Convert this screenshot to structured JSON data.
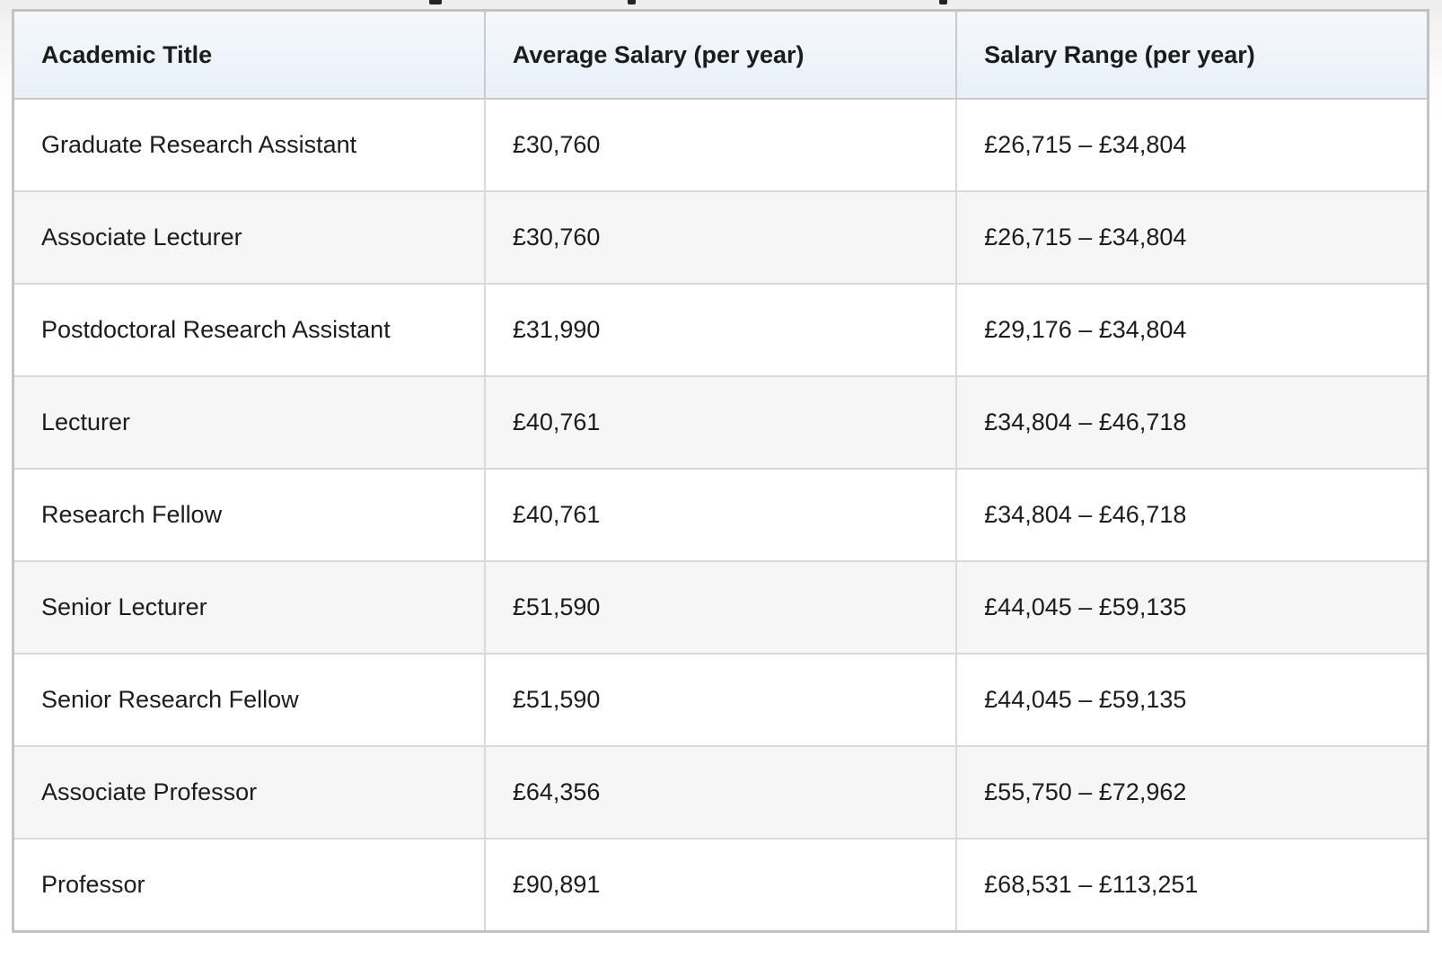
{
  "table": {
    "columns": [
      "Academic Title",
      "Average Salary (per year)",
      "Salary Range (per year)"
    ],
    "rows": [
      {
        "title": "Graduate Research Assistant",
        "average": "£30,760",
        "range": "£26,715 – £34,804"
      },
      {
        "title": "Associate Lecturer",
        "average": "£30,760",
        "range": "£26,715 – £34,804"
      },
      {
        "title": "Postdoctoral Research Assistant",
        "average": "£31,990",
        "range": "£29,176 – £34,804"
      },
      {
        "title": "Lecturer",
        "average": "£40,761",
        "range": "£34,804 – £46,718"
      },
      {
        "title": "Research Fellow",
        "average": "£40,761",
        "range": "£34,804 – £46,718"
      },
      {
        "title": "Senior Lecturer",
        "average": "£51,590",
        "range": "£44,045 – £59,135"
      },
      {
        "title": "Senior Research Fellow",
        "average": "£51,590",
        "range": "£44,045 – £59,135"
      },
      {
        "title": "Associate Professor",
        "average": "£64,356",
        "range": "£55,750 – £72,962"
      },
      {
        "title": "Professor",
        "average": "£90,891",
        "range": "£68,531 – £113,251"
      }
    ]
  },
  "chart_data": {
    "type": "table",
    "title": "",
    "columns": [
      "Academic Title",
      "Average Salary (per year)",
      "Salary Range (per year)"
    ],
    "rows": [
      [
        "Graduate Research Assistant",
        "£30,760",
        "£26,715 – £34,804"
      ],
      [
        "Associate Lecturer",
        "£30,760",
        "£26,715 – £34,804"
      ],
      [
        "Postdoctoral Research Assistant",
        "£31,990",
        "£29,176 – £34,804"
      ],
      [
        "Lecturer",
        "£40,761",
        "£34,804 – £46,718"
      ],
      [
        "Research Fellow",
        "£40,761",
        "£34,804 – £46,718"
      ],
      [
        "Senior Lecturer",
        "£51,590",
        "£44,045 – £59,135"
      ],
      [
        "Senior Research Fellow",
        "£51,590",
        "£44,045 – £59,135"
      ],
      [
        "Associate Professor",
        "£64,356",
        "£55,750 – £72,962"
      ],
      [
        "Professor",
        "£90,891",
        "£68,531 – £113,251"
      ]
    ],
    "numeric": [
      {
        "title": "Graduate Research Assistant",
        "average": 30760,
        "range_min": 26715,
        "range_max": 34804
      },
      {
        "title": "Associate Lecturer",
        "average": 30760,
        "range_min": 26715,
        "range_max": 34804
      },
      {
        "title": "Postdoctoral Research Assistant",
        "average": 31990,
        "range_min": 29176,
        "range_max": 34804
      },
      {
        "title": "Lecturer",
        "average": 40761,
        "range_min": 34804,
        "range_max": 46718
      },
      {
        "title": "Research Fellow",
        "average": 40761,
        "range_min": 34804,
        "range_max": 46718
      },
      {
        "title": "Senior Lecturer",
        "average": 51590,
        "range_min": 44045,
        "range_max": 59135
      },
      {
        "title": "Senior Research Fellow",
        "average": 51590,
        "range_min": 44045,
        "range_max": 59135
      },
      {
        "title": "Associate Professor",
        "average": 64356,
        "range_min": 55750,
        "range_max": 72962
      },
      {
        "title": "Professor",
        "average": 90891,
        "range_min": 68531,
        "range_max": 113251
      }
    ],
    "currency": "GBP",
    "layout": {
      "striped_rows": true,
      "header_background": "light-blue-gradient"
    }
  },
  "colors": {
    "header_gradient_top": "#f4f8fc",
    "header_gradient_bottom": "#e8eff8",
    "row_background": "#ffffff",
    "row_alt_background": "#f6f6f6",
    "border_inner": "#d9d9d9",
    "border_outer": "#c2c2c2",
    "text": "#1c1c1c"
  }
}
